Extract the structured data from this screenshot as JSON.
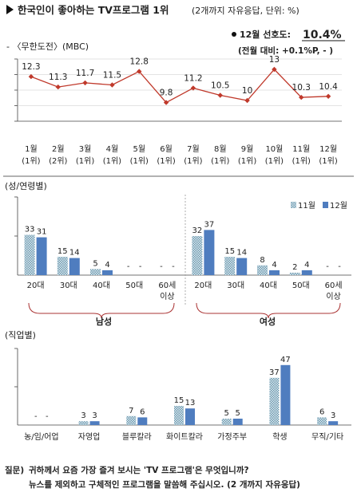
{
  "header": {
    "title": "한국인이 좋아하는 TV프로그램 1위",
    "subtitle": "(2개까지 자유응답, 단위: %)",
    "marker_icon": "triangle-right-icon"
  },
  "legend_line": "- 〈무한도전〉(MBC)",
  "summary": {
    "label": "12월 선호도:",
    "value": "10.4%",
    "change": "(전월 대비: +0.1%P, - )"
  },
  "chart_data": [
    {
      "type": "line",
      "x": [
        "1월",
        "2월",
        "3월",
        "4월",
        "5월",
        "6월",
        "7월",
        "8월",
        "9월",
        "10월",
        "11월",
        "12월"
      ],
      "x_sub": [
        "(1위)",
        "(2위)",
        "(1위)",
        "(1위)",
        "(1위)",
        "(1위)",
        "(1위)",
        "(1위)",
        "(1위)",
        "(1위)",
        "(1위)",
        "(1위)"
      ],
      "series": [
        {
          "name": "〈무한도전〉(MBC)",
          "values": [
            12.3,
            11.3,
            11.7,
            11.5,
            12.8,
            9.8,
            11.2,
            10.5,
            10.0,
            13.0,
            10.3,
            10.4
          ],
          "color": "#c0392b"
        }
      ],
      "grid": true
    },
    {
      "type": "bar",
      "section_label": "(성/연령별)",
      "legend": [
        "11월",
        "12월"
      ],
      "legend_position": "top-right",
      "groups": [
        {
          "name": "남성",
          "categories": [
            "20대",
            "30대",
            "40대",
            "50대",
            "60세 이상"
          ],
          "series": [
            {
              "name": "11월",
              "values": [
                33,
                15,
                5,
                null,
                null
              ],
              "labels": [
                "33",
                "15",
                "5",
                "-",
                "-"
              ]
            },
            {
              "name": "12월",
              "values": [
                31,
                14,
                4,
                null,
                null
              ],
              "labels": [
                "31",
                "14",
                "4",
                "-",
                "-"
              ]
            }
          ]
        },
        {
          "name": "여성",
          "categories": [
            "20대",
            "30대",
            "40대",
            "50대",
            "60세 이상"
          ],
          "series": [
            {
              "name": "11월",
              "values": [
                32,
                15,
                8,
                2,
                null
              ],
              "labels": [
                "32",
                "15",
                "8",
                "2",
                "-"
              ]
            },
            {
              "name": "12월",
              "values": [
                37,
                14,
                4,
                4,
                null
              ],
              "labels": [
                "37",
                "14",
                "4",
                "4",
                "-"
              ]
            }
          ]
        }
      ]
    },
    {
      "type": "bar",
      "section_label": "(직업별)",
      "categories": [
        "농/임/어업",
        "자영업",
        "블루칼라",
        "화이트칼라",
        "가정주부",
        "학생",
        "무직/기타"
      ],
      "series": [
        {
          "name": "11월",
          "values": [
            null,
            3,
            7,
            15,
            5,
            37,
            6
          ],
          "labels": [
            "-",
            "3",
            "7",
            "15",
            "5",
            "37",
            "6"
          ]
        },
        {
          "name": "12월",
          "values": [
            null,
            3,
            6,
            13,
            5,
            47,
            3
          ],
          "labels": [
            "-",
            "3",
            "6",
            "13",
            "5",
            "47",
            "3"
          ]
        }
      ]
    }
  ],
  "colors": {
    "nov": "#8fb6c9",
    "dec": "#4f7dbf",
    "line": "#c0392b"
  },
  "footer": {
    "q_label": "질문)",
    "line1": "귀하께서 요즘 가장 즐겨 보시는 'TV 프로그램'은 무엇입니까?",
    "line2": "뉴스를 제외하고 구체적인 프로그램을 말씀해 주십시오. (2 개까지 자유응답)"
  }
}
